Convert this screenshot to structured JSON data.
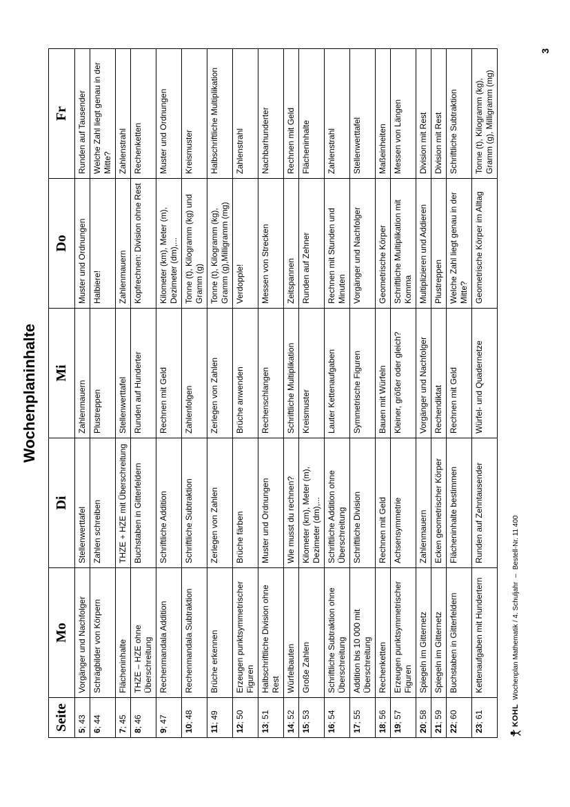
{
  "title": "Wochenplaninhalte",
  "columns": [
    "Seite",
    "Mo",
    "Di",
    "Mi",
    "Do",
    "Fr"
  ],
  "rows": [
    {
      "seite_bold": "5",
      "seite_rest": "; 43",
      "mo": "Vorgänger und Nachfolger",
      "di": "Stellenwerttafel",
      "mi": "Zahlenmauern",
      "do": "Muster und Ordnungen",
      "fr": "Runden auf Tausender"
    },
    {
      "seite_bold": "6",
      "seite_rest": "; 44",
      "mo": "Schrägbilder von Körpern",
      "di": "Zahlen schreiben",
      "mi": "Plustreppen",
      "do": "Halbiere!",
      "fr": "Welche Zahl liegt genau in der Mitte?"
    },
    {
      "seite_bold": "7",
      "seite_rest": "; 45",
      "mo": "Flächeninhalte",
      "di": "THZE + HZE mit Überschreitung",
      "mi": "Stellenwerttafel",
      "do": "Zahlenmauern",
      "fr": "Zahlenstrahl"
    },
    {
      "seite_bold": "8",
      "seite_rest": "; 46",
      "mo": "THZE – HZE ohne Überschreitung",
      "di": "Buchstaben in Gitterfeldern",
      "mi": "Runden auf Hunderter",
      "do": "Kopfrechnen: Division ohne Rest",
      "fr": "Rechenketten"
    },
    {
      "seite_bold": "9",
      "seite_rest": "; 47",
      "mo": "Rechenmandala Addition",
      "di": "Schriftliche Addition",
      "mi": "Rechnen mit Geld",
      "do": "Kilometer (km), Meter (m), Dezimeter (dm),...",
      "fr": "Muster und Ordnungen"
    },
    {
      "seite_bold": "10",
      "seite_rest": "; 48",
      "mo": "Rechenmandala Subtraktion",
      "di": "Schriftliche Subtraktion",
      "mi": "Zahlenfolgen",
      "do": "Tonne (t), Kilogramm (kg) und Gramm (g)",
      "fr": "Kreismuster"
    },
    {
      "seite_bold": "11",
      "seite_rest": "; 49",
      "mo": "Brüche erkennen",
      "di": "Zerlegen von Zahlen",
      "mi": "Zerlegen von Zahlen",
      "do": "Tonne (t), Kilogramm (kg), Gramm (g),Milligramm (mg)",
      "fr": "Halbschriftliche Multiplikation"
    },
    {
      "seite_bold": "12",
      "seite_rest": "; 50",
      "mo": "Erzeugen punktsymmetrischer Figuren",
      "di": "Brüche färben",
      "mi": "Brüche anwenden",
      "do": "Verdopple!",
      "fr": "Zahlenstrahl"
    },
    {
      "seite_bold": "13",
      "seite_rest": "; 51",
      "mo": "Halbschriftliche Division ohne Rest",
      "di": "Muster und Ordnungen",
      "mi": "Rechenschlangen",
      "do": "Messen von Strecken",
      "fr": "Nachbarhunderter"
    },
    {
      "seite_bold": "14",
      "seite_rest": "; 52",
      "mo": "Würfelbauten",
      "di": "Wie musst du rechnen?",
      "mi": "Schriftliche Multiplikation",
      "do": "Zeitspannen",
      "fr": "Rechnen mit Geld"
    },
    {
      "seite_bold": "15",
      "seite_rest": "; 53",
      "mo": "Große Zahlen",
      "di": "Kilometer (km), Meter (m), Dezimeter (dm),...",
      "mi": "Kreismuster",
      "do": "Runden auf Zehner",
      "fr": "Flächeninhalte"
    },
    {
      "seite_bold": "16",
      "seite_rest": "; 54",
      "mo": "Schriftliche Subtraktion ohne Überschreitung",
      "di": "Schriftliche Addition ohne Überschreitung",
      "mi": "Lauter Kettenaufgaben",
      "do": "Rechnen mit Stunden und Minuten",
      "fr": "Zahlenstrahl"
    },
    {
      "seite_bold": "17",
      "seite_rest": "; 55",
      "mo": "Addition bis 10 000 mit Überschreitung",
      "di": "Schriftliche Division",
      "mi": "Symmetrische Figuren",
      "do": "Vorgänger und Nachfolger",
      "fr": "Stellenwerttafel"
    },
    {
      "seite_bold": "18",
      "seite_rest": "; 56",
      "mo": "Rechenketten",
      "di": "Rechnen mit Geld",
      "mi": "Bauen mit Würfeln",
      "do": "Geometrische Körper",
      "fr": "Maßeinheiten"
    },
    {
      "seite_bold": "19",
      "seite_rest": "; 57",
      "mo": "Erzeugen punktsymmetrischer Figuren",
      "di": "Achsensymmetrie",
      "mi": "Kleiner, größer oder gleich?",
      "do": "Schriftliche Multiplikation mit Komma",
      "fr": "Messen von Längen"
    },
    {
      "seite_bold": "20",
      "seite_rest": "; 58",
      "mo": "Spiegeln im Gitternetz",
      "di": "Zahlenmauern",
      "mi": "Vorgänger und Nachfolger",
      "do": "Multiplizieren und Addieren",
      "fr": "Division mit Rest"
    },
    {
      "seite_bold": "21",
      "seite_rest": "; 59",
      "mo": "Spiegeln im Gitternetz",
      "di": "Ecken geometrischer Körper",
      "mi": "Rechendiktat",
      "do": "Plustreppen",
      "fr": "Division mit Rest"
    },
    {
      "seite_bold": "22",
      "seite_rest": "; 60",
      "mo": "Buchstaben in Gitterfeldern",
      "di": "Flächeninhalte bestimmen",
      "mi": "Rechnen mit Geld",
      "do": "Welche Zahl liegt genau in der Mitte?",
      "fr": "Schriftliche Subtraktion"
    },
    {
      "seite_bold": "23",
      "seite_rest": "; 61",
      "mo": "Kettenaufgaben mit Hundertern",
      "di": "Runden auf Zehntausender",
      "mi": "Würfel- und Quadernetze",
      "do": "Geometrische Körper im Alltag",
      "fr": "Tonne (t), Kilogramm (kg), Gramm (g), Milligramm (mg)"
    }
  ],
  "footer": {
    "publisher": "KOHL",
    "line": "Wochenplan Mathematik  /  4. Schuljahr",
    "sep": "–",
    "order": "Bestell-Nr. 11 400"
  },
  "page_number": "3"
}
